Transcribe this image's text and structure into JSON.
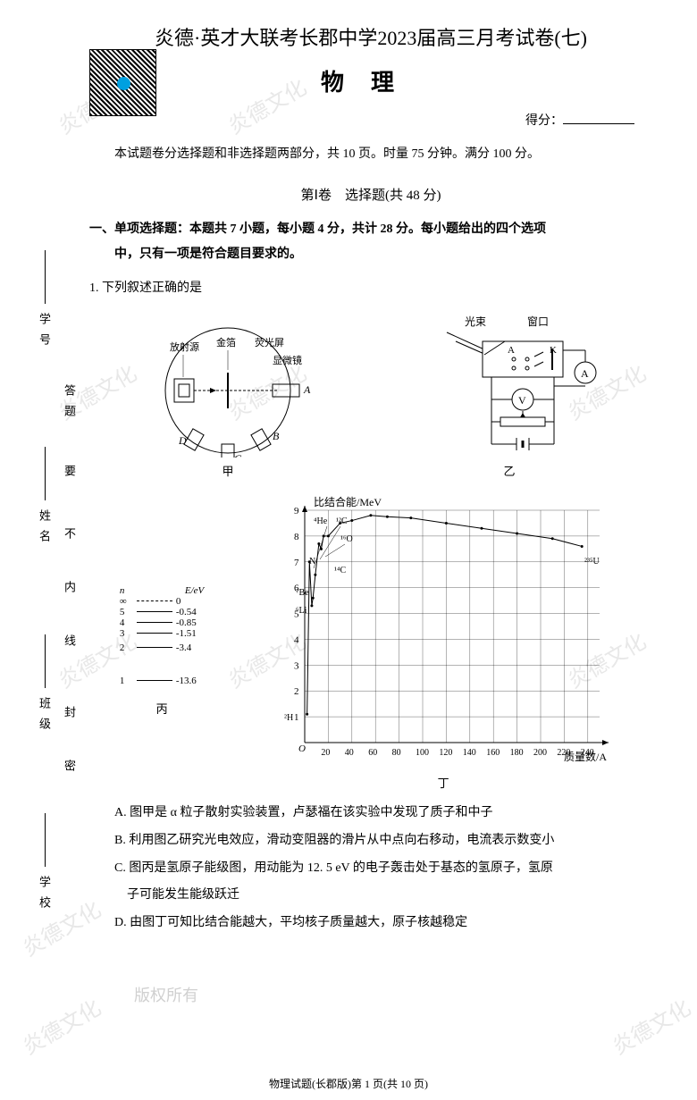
{
  "header": {
    "main_title": "炎德·英才大联考长郡中学2023届高三月考试卷(七)",
    "subject": "物理",
    "score_label": "得分：",
    "info": "本试题卷分选择题和非选择题两部分，共 10 页。时量 75 分钟。满分 100 分。",
    "section1": "第Ⅰ卷　选择题(共 48 分)"
  },
  "sidebar": {
    "labels": [
      "学号",
      "答题",
      "姓名",
      "要",
      "不",
      "内",
      "线",
      "班级",
      "封",
      "密",
      "学校"
    ]
  },
  "watermark_text": "炎德文化",
  "copyright_text": "版权所有",
  "question_type": {
    "line1": "一、单项选择题：本题共 7 小题，每小题 4 分，共计 28 分。每小题给出的四个选项",
    "line2": "中，只有一项是符合题目要求的。"
  },
  "q1": {
    "stem": "1. 下列叙述正确的是",
    "fig_labels": {
      "jia": "甲",
      "yi": "乙",
      "bing": "丙",
      "ding": "丁"
    },
    "fig_jia": {
      "labels": [
        "放射源",
        "金箔",
        "荧光屏",
        "显微镜"
      ],
      "ports": [
        "A",
        "B",
        "C",
        "D"
      ]
    },
    "fig_yi": {
      "labels": [
        "光束",
        "窗口",
        "K",
        "A",
        "V"
      ]
    },
    "fig_bing": {
      "title_n": "n",
      "title_e": "E/eV",
      "levels": [
        {
          "n": "∞",
          "e": "0"
        },
        {
          "n": "5",
          "e": "-0.54"
        },
        {
          "n": "4",
          "e": "-0.85"
        },
        {
          "n": "3",
          "e": "-1.51"
        },
        {
          "n": "2",
          "e": "-3.4"
        },
        {
          "n": "1",
          "e": "-13.6"
        }
      ]
    },
    "fig_ding": {
      "ylabel": "比结合能/MeV",
      "xlabel": "质量数/A",
      "yticks": [
        0,
        1,
        2,
        3,
        4,
        5,
        6,
        7,
        8,
        9
      ],
      "xticks": [
        0,
        20,
        40,
        60,
        80,
        100,
        120,
        140,
        160,
        180,
        200,
        220,
        240
      ],
      "annotations": [
        "⁴He",
        "¹²C",
        "¹⁶O",
        "N",
        "¹⁴C",
        "⁷Be",
        "⁶Li",
        "²H",
        "²³⁵U"
      ],
      "curve_points": [
        [
          2,
          1.1
        ],
        [
          4,
          7.0
        ],
        [
          6,
          5.3
        ],
        [
          7,
          5.6
        ],
        [
          9,
          6.5
        ],
        [
          12,
          7.7
        ],
        [
          14,
          7.5
        ],
        [
          16,
          8.0
        ],
        [
          20,
          8.0
        ],
        [
          30,
          8.5
        ],
        [
          40,
          8.6
        ],
        [
          56,
          8.8
        ],
        [
          70,
          8.75
        ],
        [
          90,
          8.7
        ],
        [
          120,
          8.5
        ],
        [
          150,
          8.3
        ],
        [
          180,
          8.1
        ],
        [
          210,
          7.9
        ],
        [
          235,
          7.6
        ]
      ]
    },
    "options": {
      "A": "A. 图甲是 α 粒子散射实验装置，卢瑟福在该实验中发现了质子和中子",
      "B": "B. 利用图乙研究光电效应，滑动变阻器的滑片从中点向右移动，电流表示数变小",
      "C1": "C. 图丙是氢原子能级图，用动能为 12. 5 eV 的电子轰击处于基态的氢原子，氢原",
      "C2": "子可能发生能级跃迁",
      "D": "D. 由图丁可知比结合能越大，平均核子质量越大，原子核越稳定"
    }
  },
  "footer": "物理试题(长郡版)第 1 页(共 10 页)"
}
